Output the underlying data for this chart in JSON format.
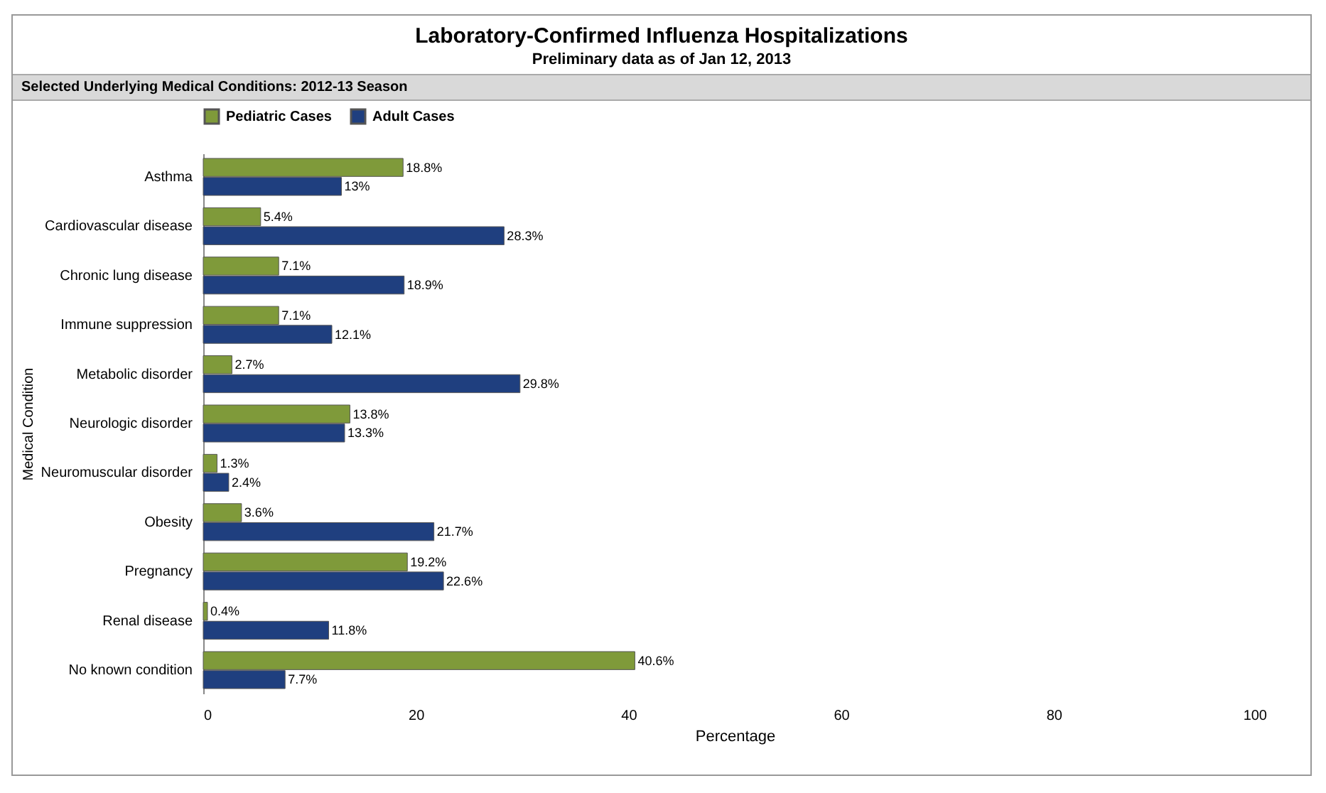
{
  "chart_data": {
    "type": "bar",
    "orientation": "horizontal",
    "title": "Laboratory-Confirmed Influenza Hospitalizations",
    "subtitle": "Preliminary data as of Jan 12, 2013",
    "annotations": [
      "Selected Underlying Medical Conditions: 2012-13 Season"
    ],
    "xlabel": "Percentage",
    "ylabel": "Medical Condition",
    "categories": [
      "Asthma",
      "Cardiovascular disease",
      "Chronic lung disease",
      "Immune suppression",
      "Metabolic disorder",
      "Neurologic disorder",
      "Neuromuscular disorder",
      "Obesity",
      "Pregnancy",
      "Renal disease",
      "No known condition"
    ],
    "series": [
      {
        "name": "Pediatric Cases",
        "color": "#7f9a3a",
        "values": [
          18.8,
          5.4,
          7.1,
          7.1,
          2.7,
          13.8,
          1.3,
          3.6,
          19.2,
          0.4,
          40.6
        ],
        "value_labels": [
          "18.8%",
          "5.4%",
          "7.1%",
          "7.1%",
          "2.7%",
          "13.8%",
          "1.3%",
          "3.6%",
          "19.2%",
          "0.4%",
          "40.6%"
        ]
      },
      {
        "name": "Adult Cases",
        "color": "#1f3f7f",
        "values": [
          13,
          28.3,
          18.9,
          12.1,
          29.8,
          13.3,
          2.4,
          21.7,
          22.6,
          11.8,
          7.7
        ],
        "value_labels": [
          "13%",
          "28.3%",
          "18.9%",
          "12.1%",
          "29.8%",
          "13.3%",
          "2.4%",
          "21.7%",
          "22.6%",
          "11.8%",
          "7.7%"
        ]
      }
    ],
    "xlim": [
      0,
      100
    ],
    "xticks": [
      0,
      20,
      40,
      60,
      80,
      100
    ],
    "grid": false,
    "legend": "top"
  }
}
